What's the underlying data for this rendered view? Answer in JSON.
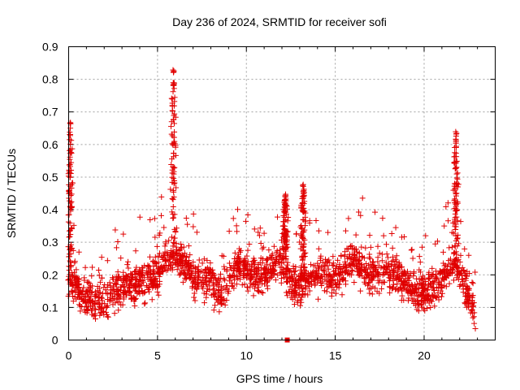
{
  "chart_data": {
    "type": "scatter",
    "title": "Day 236 of 2024, SRMTID for receiver sofi",
    "xlabel": "GPS time / hours",
    "ylabel": "SRMTID / TECUs",
    "xlim": [
      0,
      24
    ],
    "ylim": [
      0,
      0.9
    ],
    "xticks": [
      0,
      5,
      10,
      15,
      20
    ],
    "xtick_labels": [
      "0",
      "5",
      "10",
      "15",
      "20"
    ],
    "yticks": [
      0,
      0.1,
      0.2,
      0.3,
      0.4,
      0.5,
      0.6,
      0.7,
      0.8,
      0.9
    ],
    "ytick_labels": [
      "0",
      "0.1",
      "0.2",
      "0.3",
      "0.4",
      "0.5",
      "0.6",
      "0.7",
      "0.8",
      "0.9"
    ],
    "grid": true,
    "marker": "+",
    "color": "#e00000",
    "x_range_of_data": [
      0,
      22.9
    ],
    "baseline_trend": [
      {
        "x": 0.0,
        "y": 0.2
      },
      {
        "x": 1.0,
        "y": 0.12
      },
      {
        "x": 2.0,
        "y": 0.12
      },
      {
        "x": 3.0,
        "y": 0.16
      },
      {
        "x": 4.0,
        "y": 0.18
      },
      {
        "x": 5.0,
        "y": 0.2
      },
      {
        "x": 5.5,
        "y": 0.26
      },
      {
        "x": 6.0,
        "y": 0.27
      },
      {
        "x": 7.0,
        "y": 0.2
      },
      {
        "x": 8.0,
        "y": 0.18
      },
      {
        "x": 8.8,
        "y": 0.14
      },
      {
        "x": 9.5,
        "y": 0.24
      },
      {
        "x": 10.0,
        "y": 0.21
      },
      {
        "x": 11.0,
        "y": 0.2
      },
      {
        "x": 12.0,
        "y": 0.24
      },
      {
        "x": 12.5,
        "y": 0.17
      },
      {
        "x": 13.0,
        "y": 0.16
      },
      {
        "x": 14.0,
        "y": 0.21
      },
      {
        "x": 15.0,
        "y": 0.19
      },
      {
        "x": 16.0,
        "y": 0.24
      },
      {
        "x": 17.0,
        "y": 0.2
      },
      {
        "x": 18.0,
        "y": 0.22
      },
      {
        "x": 19.0,
        "y": 0.16
      },
      {
        "x": 20.0,
        "y": 0.14
      },
      {
        "x": 21.0,
        "y": 0.19
      },
      {
        "x": 21.8,
        "y": 0.24
      },
      {
        "x": 22.3,
        "y": 0.16
      },
      {
        "x": 22.9,
        "y": 0.09
      }
    ],
    "spikes": [
      {
        "x": 0.1,
        "peak": 0.67
      },
      {
        "x": 5.9,
        "peak": 0.83
      },
      {
        "x": 12.2,
        "peak": 0.45
      },
      {
        "x": 13.2,
        "peak": 0.48
      },
      {
        "x": 21.8,
        "peak": 0.64
      }
    ],
    "isolated_points": [
      {
        "x": 12.3,
        "y": 0.0
      }
    ]
  }
}
